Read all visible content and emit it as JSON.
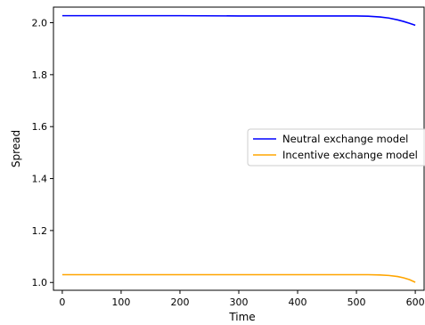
{
  "chart_data": {
    "type": "line",
    "title": "",
    "xlabel": "Time",
    "ylabel": "Spread",
    "xlim": [
      -15,
      615
    ],
    "ylim": [
      0.97,
      2.06
    ],
    "xticks": [
      0,
      100,
      200,
      300,
      400,
      500,
      600
    ],
    "yticks": [
      1.0,
      1.2,
      1.4,
      1.6,
      1.8,
      2.0
    ],
    "xtick_labels": [
      "0",
      "100",
      "200",
      "300",
      "400",
      "500",
      "600"
    ],
    "ytick_labels": [
      "1.0",
      "1.2",
      "1.4",
      "1.6",
      "1.8",
      "2.0"
    ],
    "grid": false,
    "legend_position": "center-right",
    "series": [
      {
        "name": "Neutral exchange model",
        "color": "#0000ff",
        "x": [
          0,
          100,
          200,
          300,
          400,
          450,
          500,
          520,
          540,
          555,
          570,
          580,
          590,
          600
        ],
        "values": [
          2.027,
          2.027,
          2.027,
          2.026,
          2.026,
          2.026,
          2.026,
          2.025,
          2.022,
          2.018,
          2.011,
          2.005,
          1.998,
          1.99
        ]
      },
      {
        "name": "Incentive exchange model",
        "color": "#ffa500",
        "x": [
          0,
          100,
          200,
          300,
          400,
          450,
          500,
          520,
          540,
          555,
          570,
          580,
          590,
          600
        ],
        "values": [
          1.03,
          1.03,
          1.03,
          1.03,
          1.03,
          1.03,
          1.03,
          1.03,
          1.029,
          1.027,
          1.023,
          1.018,
          1.011,
          1.001
        ]
      }
    ]
  }
}
